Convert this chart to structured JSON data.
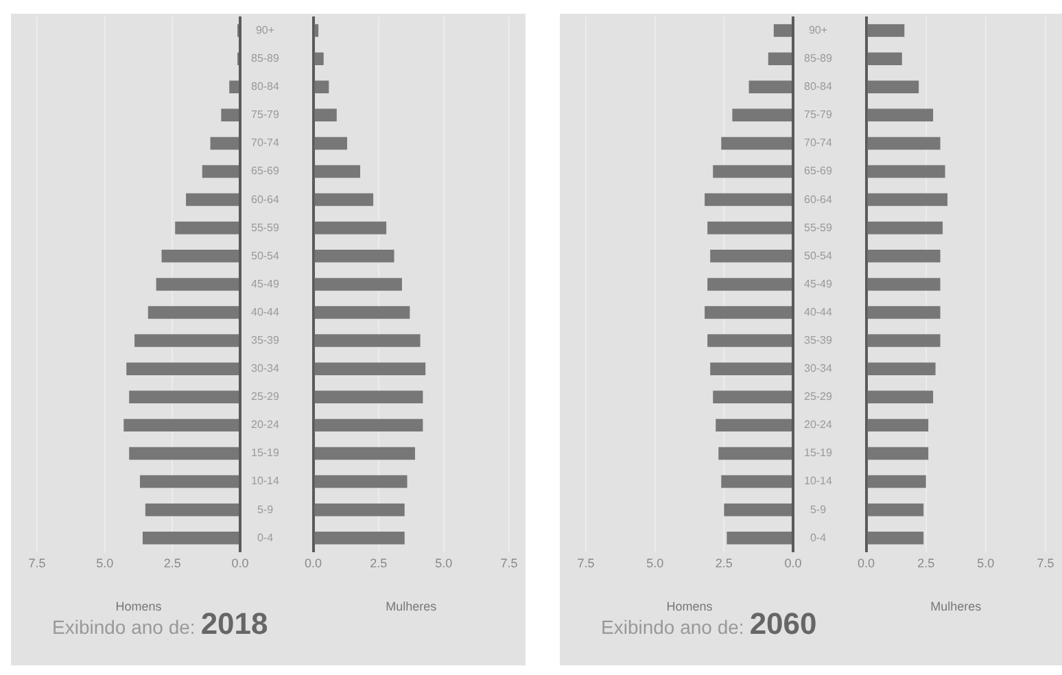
{
  "chart_data": [
    {
      "type": "bar",
      "orientation": "horizontal",
      "xlabel": "Homens",
      "categories": [
        "90+",
        "85-89",
        "80-84",
        "75-79",
        "70-74",
        "65-69",
        "60-64",
        "55-59",
        "50-54",
        "45-49",
        "40-44",
        "35-39",
        "30-34",
        "25-29",
        "20-24",
        "15-19",
        "10-14",
        "5-9",
        "0-4"
      ],
      "values": [
        0.1,
        0.1,
        0.4,
        0.7,
        1.1,
        1.4,
        2.0,
        2.4,
        2.9,
        3.1,
        3.4,
        3.9,
        4.2,
        4.1,
        4.3,
        4.1,
        3.7,
        3.5,
        3.6
      ],
      "color": "#777777",
      "xlim": [
        7.5,
        0
      ],
      "xticks": [
        {
          "value": 7.5,
          "label": "7.5"
        },
        {
          "value": 5,
          "label": "5.0"
        },
        {
          "value": 2.5,
          "label": "2.5"
        },
        {
          "value": 0,
          "label": "0.0"
        }
      ],
      "grid": "x",
      "annotations": [
        "Exibindo ano de:",
        "2018"
      ]
    },
    {
      "type": "bar",
      "orientation": "horizontal",
      "xlabel": "Mulheres",
      "categories": [
        null,
        null,
        null,
        null,
        null,
        null,
        null,
        null,
        null,
        null,
        null,
        null,
        null,
        null,
        null,
        null,
        null,
        null,
        null
      ],
      "values": [
        0.2,
        0.4,
        0.6,
        0.9,
        1.3,
        1.8,
        2.3,
        2.8,
        3.1,
        3.4,
        3.7,
        4.1,
        4.3,
        4.2,
        4.2,
        3.9,
        3.6,
        3.5,
        3.5
      ],
      "color": "#777777",
      "xlim": [
        0,
        7.5
      ],
      "xticks": [
        {
          "value": 0,
          "label": "0.0"
        },
        {
          "value": 2.5,
          "label": "2.5"
        },
        {
          "value": 5,
          "label": "5.0"
        },
        {
          "value": 7.5,
          "label": "7.5"
        }
      ],
      "grid": "x",
      "tick_labels": "x"
    },
    {
      "type": "bar",
      "orientation": "horizontal",
      "xlabel": "Homens",
      "categories": [
        "90+",
        "85-89",
        "80-84",
        "75-79",
        "70-74",
        "65-69",
        "60-64",
        "55-59",
        "50-54",
        "45-49",
        "40-44",
        "35-39",
        "30-34",
        "25-29",
        "20-24",
        "15-19",
        "10-14",
        "5-9",
        "0-4"
      ],
      "values": [
        0.7,
        0.9,
        1.6,
        2.2,
        2.6,
        2.9,
        3.2,
        3.1,
        3.0,
        3.1,
        3.2,
        3.1,
        3.0,
        2.9,
        2.8,
        2.7,
        2.6,
        2.5,
        2.4
      ],
      "color": "#777777",
      "xlim": [
        7.5,
        0
      ],
      "xticks": [
        {
          "value": 7.5,
          "label": "7.5"
        },
        {
          "value": 5,
          "label": "5.0"
        },
        {
          "value": 2.5,
          "label": "2.5"
        },
        {
          "value": 0,
          "label": "0.0"
        }
      ],
      "grid": "x",
      "annotations": [
        "Exibindo ano de:",
        "2060"
      ]
    },
    {
      "type": "bar",
      "orientation": "horizontal",
      "xlabel": "Mulheres",
      "categories": [
        null,
        null,
        null,
        null,
        null,
        null,
        null,
        null,
        null,
        null,
        null,
        null,
        null,
        null,
        null,
        null,
        null,
        null,
        null
      ],
      "values": [
        1.6,
        1.5,
        2.2,
        2.8,
        3.1,
        3.3,
        3.4,
        3.2,
        3.1,
        3.1,
        3.1,
        3.1,
        2.9,
        2.8,
        2.6,
        2.6,
        2.5,
        2.4,
        2.4
      ],
      "color": "#777777",
      "xlim": [
        0,
        7.5
      ],
      "xticks": [
        {
          "value": 0,
          "label": "0.0"
        },
        {
          "value": 2.5,
          "label": "2.5"
        },
        {
          "value": 5,
          "label": "5.0"
        },
        {
          "value": 7.5,
          "label": "7.5"
        }
      ],
      "grid": "x",
      "tick_labels": "x"
    }
  ]
}
